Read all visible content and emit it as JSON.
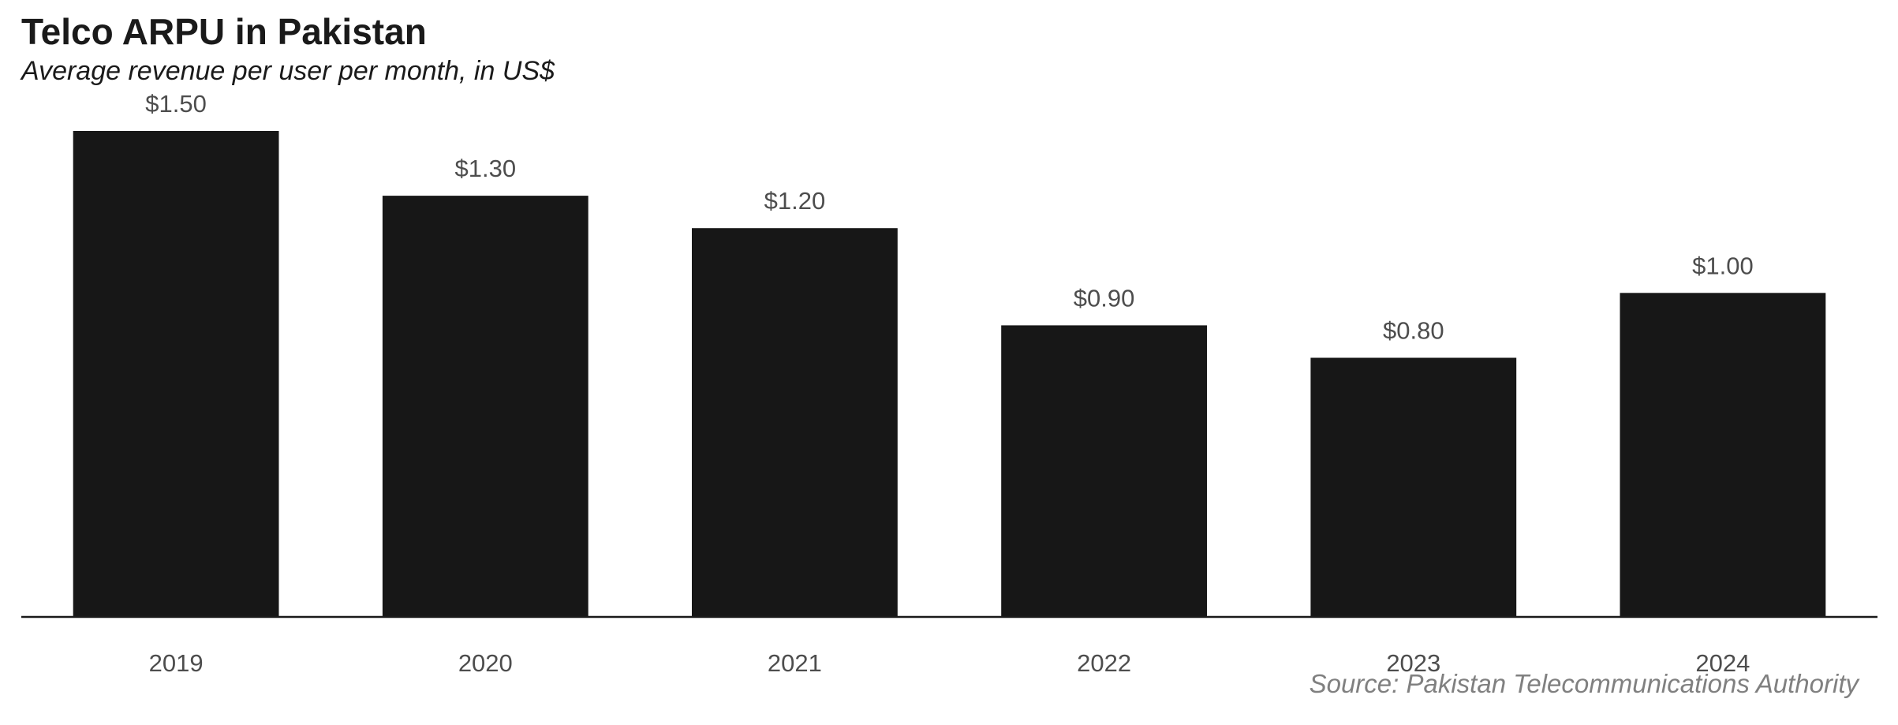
{
  "chart_data": {
    "type": "bar",
    "title": "Telco ARPU in Pakistan",
    "subtitle": "Average revenue per user per month, in US$",
    "categories": [
      "2019",
      "2020",
      "2021",
      "2022",
      "2023",
      "2024"
    ],
    "values": [
      1.5,
      1.3,
      1.2,
      0.9,
      0.8,
      1.0
    ],
    "value_labels": [
      "$1.50",
      "$1.30",
      "$1.20",
      "$0.90",
      "$0.80",
      "$1.00"
    ],
    "xlabel": "",
    "ylabel": "",
    "ylim": [
      0,
      1.5
    ],
    "grid": false,
    "legend": "none",
    "source": "Source: Pakistan Telecommunications Authority",
    "colors": {
      "bar": "#171717",
      "title": "#1a1a1a",
      "subtitle": "#1a1a1a",
      "value_label": "#4d4d4d",
      "tick_label": "#4d4d4d",
      "source": "#808080",
      "axis": "#1a1a1a"
    }
  }
}
